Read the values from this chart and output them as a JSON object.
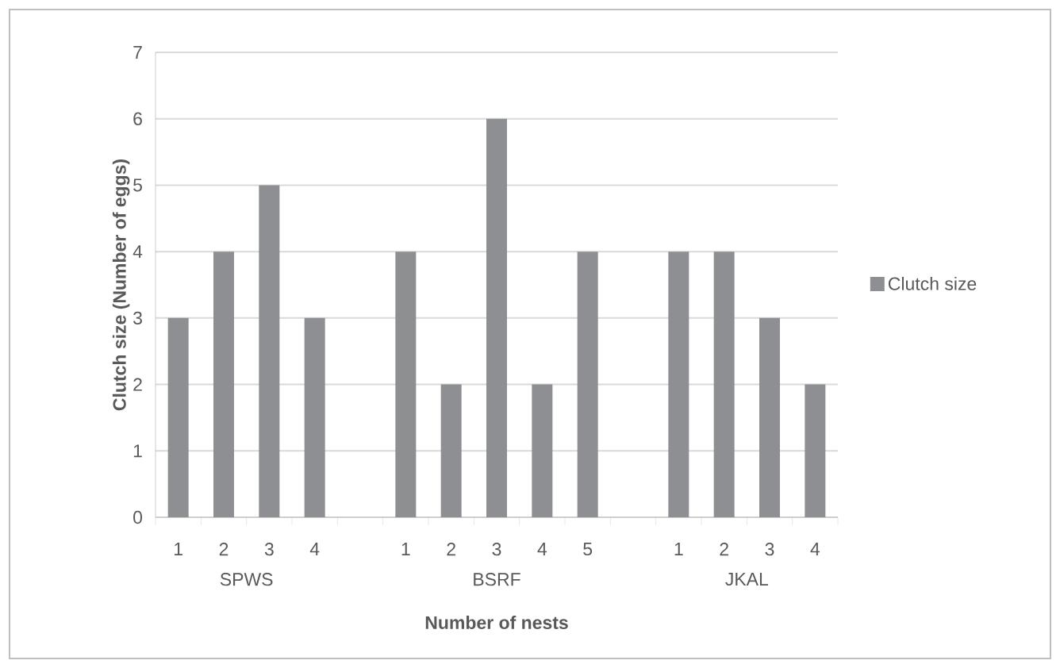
{
  "chart_data": {
    "type": "bar",
    "xlabel": "Number of nests",
    "ylabel": "Clutch size (Number of eggs)",
    "categories": [
      "1",
      "2",
      "3",
      "4",
      null,
      "1",
      "2",
      "3",
      "4",
      "5",
      null,
      "1",
      "2",
      "3",
      "4"
    ],
    "series": [
      {
        "name": "Clutch size",
        "color": "#8e8f93",
        "values": [
          3,
          4,
          5,
          3,
          null,
          4,
          2,
          6,
          2,
          4,
          null,
          4,
          4,
          3,
          2
        ]
      }
    ],
    "ylim": [
      0,
      7
    ],
    "yticks": [
      0,
      1,
      2,
      3,
      4,
      5,
      6,
      7
    ],
    "grid": "y",
    "legend": "right",
    "annotations": [
      "SPWS",
      "BSRF",
      "JKAL"
    ]
  }
}
